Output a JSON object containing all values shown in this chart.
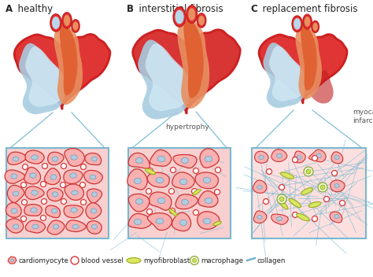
{
  "title_A": "A  healthy",
  "title_B": "B  interstitial fibrosis",
  "title_C": "C  replacement fibrosis",
  "label_hypertrophy": "hypertrophy",
  "label_infarction": "myocardial\ninfarction",
  "heart_red": "#cc2020",
  "heart_red2": "#e03535",
  "heart_pink": "#e87070",
  "heart_blue": "#a8cce0",
  "heart_blue2": "#b8d8ea",
  "heart_orange": "#e06030",
  "heart_orange2": "#e89060",
  "tissue_bg_A": "#f8d0d0",
  "tissue_bg_B": "#f8d0d0",
  "tissue_bg_C": "#fce0e0",
  "cell_fill": "#f9b0b0",
  "cell_outline": "#cc3333",
  "collagen_color": "#70b8d0",
  "vessel_color": "#dd3333",
  "myofib_fill": "#d8e860",
  "myofib_outline": "#a0a820",
  "macro_fill": "#e8f8c0",
  "macro_outline": "#80a030",
  "nucleus_fill": "#b0cce0",
  "panel_border": "#7ab8d0",
  "white": "#ffffff",
  "bg_color": "#ffffff",
  "text_color": "#222222",
  "font_size_title": 8.5,
  "font_size_label": 6.5,
  "connector_color": "#70b8d0"
}
